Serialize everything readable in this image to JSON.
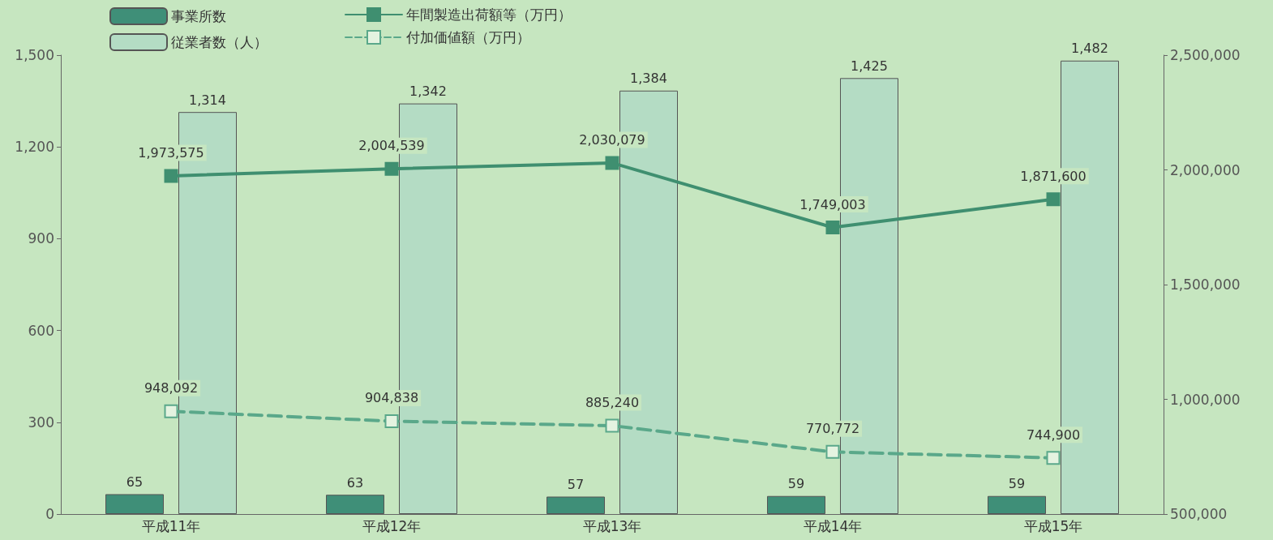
{
  "chart_data": {
    "type": "bar",
    "categories": [
      "平成11年",
      "平成12年",
      "平成13年",
      "平成14年",
      "平成15年"
    ],
    "series": [
      {
        "name": "事業所数",
        "color": "#3f8f78",
        "values": [
          65,
          63,
          57,
          59,
          59
        ],
        "value_labels": [
          "65",
          "63",
          "57",
          "59",
          "59"
        ]
      },
      {
        "name": "従業者数（人）",
        "color": "#b4dcc4",
        "values": [
          1314,
          1342,
          1384,
          1425,
          1482
        ],
        "value_labels": [
          "1,314",
          "1,342",
          "1,384",
          "1,425",
          "1,482"
        ]
      },
      {
        "name": "年間製造出荷額等（万円）",
        "type": "line",
        "axis": "y2",
        "color": "#3f8f70",
        "line_style": "solid",
        "values": [
          1973575,
          2004539,
          2030079,
          1749003,
          1871600
        ],
        "value_labels": [
          "1,973,575",
          "2,004,539",
          "2,030,079",
          "1,749,003",
          "1,871,600"
        ]
      },
      {
        "name": "付加価値額（万円）",
        "type": "line",
        "axis": "y2",
        "color": "#5aa88a",
        "line_style": "dashed",
        "values": [
          948092,
          904838,
          885240,
          770772,
          744900
        ],
        "value_labels": [
          "948,092",
          "904,838",
          "885,240",
          "770,772",
          "744,900"
        ]
      }
    ],
    "ylim": [
      0,
      1500
    ],
    "yticks": [
      0,
      300,
      600,
      900,
      {
        "value": 1200,
        "label": "1,200"
      },
      {
        "value": 1500,
        "label": "1,500"
      }
    ],
    "y2lim": [
      500000,
      2500000
    ],
    "y2ticks": [
      {
        "value": 500000,
        "label": "500,000"
      },
      {
        "value": 1000000,
        "label": "1,000,000"
      },
      {
        "value": 1500000,
        "label": "1,500,000"
      },
      {
        "value": 2000000,
        "label": "2,000,000"
      },
      {
        "value": 2500000,
        "label": "2,500,000"
      }
    ],
    "marker": "square",
    "grid": false,
    "legend": "top left"
  }
}
